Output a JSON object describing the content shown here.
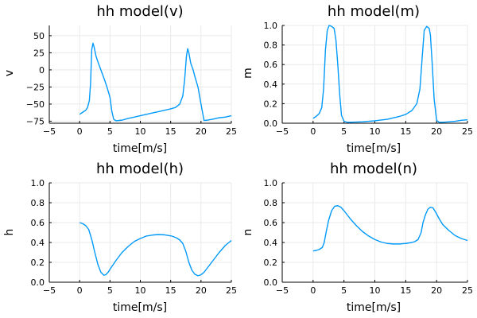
{
  "chart_data": [
    {
      "type": "line",
      "title": "hh model(v)",
      "xlabel": "time[m/s]",
      "ylabel": "v",
      "xlim": [
        -5,
        25
      ],
      "ylim": [
        -78,
        65
      ],
      "xticks": [
        -5,
        0,
        5,
        10,
        15,
        20,
        25
      ],
      "yticks": [
        -75,
        -50,
        -25,
        0,
        25,
        50
      ],
      "grid": true,
      "legend": "none",
      "series": [
        {
          "color": "#009AFA",
          "x": [
            0,
            0.5,
            1,
            1.3,
            1.6,
            1.8,
            2.0,
            2.2,
            2.4,
            2.7,
            3.0,
            3.5,
            4.0,
            4.5,
            5.0,
            5.3,
            5.6,
            6.0,
            7,
            8,
            9,
            10,
            11,
            12,
            13,
            14,
            15,
            15.8,
            16.5,
            17.0,
            17.3,
            17.6,
            17.8,
            18.0,
            18.3,
            18.7,
            19.0,
            19.5,
            20.0,
            20.5,
            21,
            22,
            23,
            24,
            25
          ],
          "y": [
            -65,
            -62,
            -59,
            -55,
            -45,
            -20,
            30,
            39,
            33,
            20,
            12,
            0,
            -12,
            -25,
            -40,
            -60,
            -72,
            -74.5,
            -73.5,
            -71,
            -69,
            -67,
            -65,
            -63,
            -61,
            -59,
            -57,
            -55,
            -50,
            -38,
            -15,
            20,
            31,
            25,
            10,
            0,
            -10,
            -25,
            -50,
            -74,
            -73.5,
            -72,
            -70,
            -69,
            -67
          ]
        }
      ]
    },
    {
      "type": "line",
      "title": "hh model(m)",
      "xlabel": "time[m/s]",
      "ylabel": "m",
      "xlim": [
        -5,
        25
      ],
      "ylim": [
        0,
        1.0
      ],
      "xticks": [
        -5,
        0,
        5,
        10,
        15,
        20,
        25
      ],
      "yticks": [
        0.0,
        0.2,
        0.4,
        0.6,
        0.8,
        1.0
      ],
      "grid": true,
      "legend": "none",
      "series": [
        {
          "color": "#009AFA",
          "x": [
            0,
            0.5,
            1,
            1.4,
            1.7,
            2.0,
            2.3,
            2.6,
            3.0,
            3.4,
            3.7,
            4.0,
            4.3,
            4.6,
            5.0,
            5.5,
            6,
            8,
            10,
            12,
            14,
            15,
            16,
            16.8,
            17.3,
            17.7,
            18.0,
            18.4,
            18.8,
            19.0,
            19.3,
            19.6,
            20.0,
            20.4,
            21,
            22,
            23,
            24,
            25
          ],
          "y": [
            0.05,
            0.07,
            0.1,
            0.16,
            0.35,
            0.75,
            0.95,
            1.0,
            0.99,
            0.97,
            0.85,
            0.6,
            0.3,
            0.08,
            0.02,
            0.01,
            0.01,
            0.015,
            0.025,
            0.04,
            0.07,
            0.09,
            0.13,
            0.2,
            0.35,
            0.7,
            0.95,
            0.99,
            0.97,
            0.9,
            0.6,
            0.25,
            0.03,
            0.01,
            0.01,
            0.015,
            0.02,
            0.03,
            0.035
          ]
        }
      ]
    },
    {
      "type": "line",
      "title": "hh model(h)",
      "xlabel": "time[m/s]",
      "ylabel": "h",
      "xlim": [
        -5,
        25
      ],
      "ylim": [
        0,
        1.0
      ],
      "xticks": [
        -5,
        0,
        5,
        10,
        15,
        20,
        25
      ],
      "yticks": [
        0.0,
        0.2,
        0.4,
        0.6,
        0.8,
        1.0
      ],
      "grid": true,
      "legend": "none",
      "series": [
        {
          "color": "#009AFA",
          "x": [
            0,
            0.5,
            1,
            1.5,
            2,
            2.5,
            3,
            3.5,
            4,
            4.3,
            4.7,
            5,
            6,
            7,
            8,
            9,
            10,
            11,
            12,
            13,
            14,
            15,
            15.5,
            16,
            16.5,
            17,
            17.5,
            18,
            18.5,
            19,
            19.5,
            20,
            20.5,
            21,
            22,
            23,
            24,
            25
          ],
          "y": [
            0.6,
            0.59,
            0.57,
            0.53,
            0.43,
            0.3,
            0.18,
            0.1,
            0.07,
            0.075,
            0.1,
            0.13,
            0.22,
            0.3,
            0.36,
            0.41,
            0.44,
            0.465,
            0.475,
            0.48,
            0.477,
            0.467,
            0.458,
            0.445,
            0.425,
            0.39,
            0.31,
            0.2,
            0.12,
            0.08,
            0.065,
            0.075,
            0.1,
            0.14,
            0.22,
            0.3,
            0.37,
            0.42
          ]
        }
      ]
    },
    {
      "type": "line",
      "title": "hh model(n)",
      "xlabel": "time[m/s]",
      "ylabel": "n",
      "xlim": [
        -5,
        25
      ],
      "ylim": [
        0,
        1.0
      ],
      "xticks": [
        -5,
        0,
        5,
        10,
        15,
        20,
        25
      ],
      "yticks": [
        0.0,
        0.2,
        0.4,
        0.6,
        0.8,
        1.0
      ],
      "grid": true,
      "legend": "none",
      "series": [
        {
          "color": "#009AFA",
          "x": [
            0,
            0.5,
            1,
            1.5,
            1.8,
            2.1,
            2.5,
            3,
            3.5,
            4,
            4.5,
            5,
            6,
            7,
            8,
            9,
            10,
            11,
            12,
            13,
            14,
            15,
            16,
            16.5,
            17,
            17.5,
            17.8,
            18.2,
            18.6,
            19,
            19.4,
            19.8,
            20.5,
            21,
            22,
            23,
            24,
            25
          ],
          "y": [
            0.315,
            0.32,
            0.33,
            0.35,
            0.4,
            0.5,
            0.62,
            0.72,
            0.765,
            0.77,
            0.755,
            0.72,
            0.64,
            0.57,
            0.51,
            0.465,
            0.43,
            0.405,
            0.39,
            0.385,
            0.385,
            0.39,
            0.4,
            0.41,
            0.43,
            0.5,
            0.6,
            0.68,
            0.735,
            0.755,
            0.75,
            0.71,
            0.63,
            0.58,
            0.52,
            0.47,
            0.44,
            0.42
          ]
        }
      ]
    }
  ]
}
